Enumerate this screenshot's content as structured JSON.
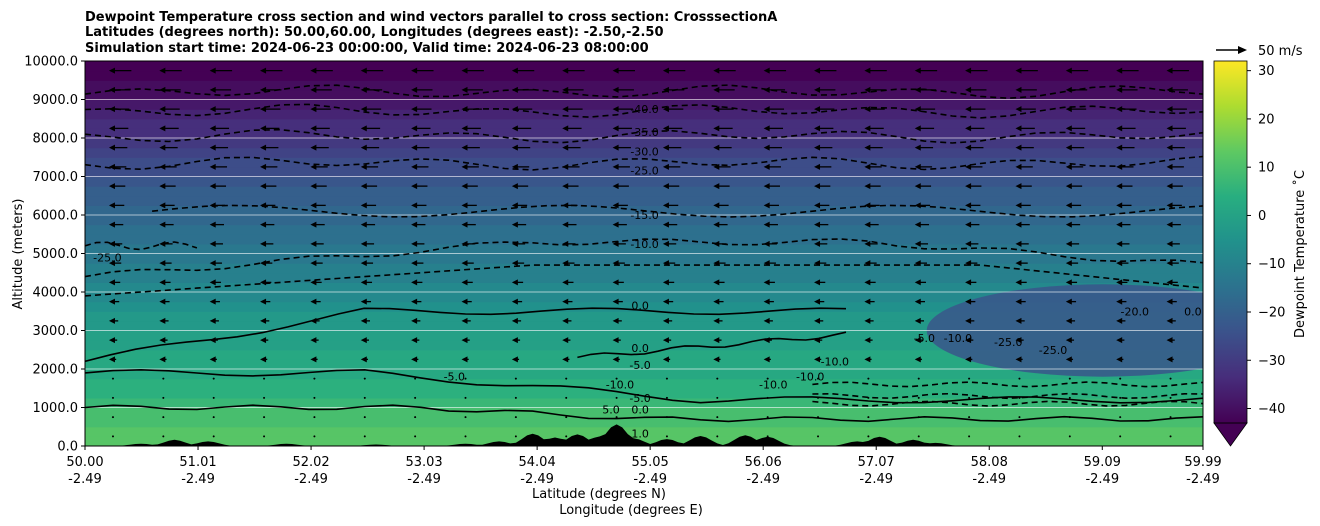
{
  "chart_data": {
    "type": "heatmap",
    "title_lines": [
      "Dewpoint Temperature cross section and wind vectors parallel to cross section: CrosssectionA",
      "Latitudes (degrees north): 50.00,60.00, Longitudes (degrees east): -2.50,-2.50",
      "Simulation start time: 2024-06-23 00:00:00, Valid time: 2024-06-23 08:00:00"
    ],
    "ylabel": "Altitude (meters)",
    "xlabel_lat": "Latitude (degrees N)",
    "xlabel_lon": "Longitude (degrees E)",
    "ylim": [
      0,
      10000
    ],
    "xlim": [
      50.0,
      59.99
    ],
    "y_ticks": [
      0,
      1000,
      2000,
      3000,
      4000,
      5000,
      6000,
      7000,
      8000,
      9000,
      10000
    ],
    "y_tick_labels": [
      "0.0",
      "1000.0",
      "2000.0",
      "3000.0",
      "4000.0",
      "5000.0",
      "6000.0",
      "7000.0",
      "8000.0",
      "9000.0",
      "10000.0"
    ],
    "x_ticks": [
      50.0,
      51.01,
      52.02,
      53.03,
      54.04,
      55.05,
      56.06,
      57.07,
      58.08,
      59.09,
      59.99
    ],
    "x_tick_lat_labels": [
      "50.00",
      "51.01",
      "52.02",
      "53.03",
      "54.04",
      "55.05",
      "56.06",
      "57.07",
      "58.08",
      "59.09",
      "59.99"
    ],
    "x_tick_lon_labels": [
      "-2.49",
      "-2.49",
      "-2.49",
      "-2.49",
      "-2.49",
      "-2.49",
      "-2.49",
      "-2.49",
      "-2.49",
      "-2.49",
      "-2.49"
    ],
    "colorbar": {
      "label": "Dewpoint Temperature ˚C",
      "range": [
        -43,
        32
      ],
      "ticks": [
        -40,
        -30,
        -20,
        -10,
        0,
        10,
        20,
        30
      ],
      "tick_labels": [
        "−40",
        "−30",
        "−20",
        "−10",
        "0",
        "10",
        "20",
        "30"
      ],
      "extend": "min"
    },
    "field_profile": [
      {
        "alt": 0,
        "dewpoint": 13
      },
      {
        "alt": 500,
        "dewpoint": 11
      },
      {
        "alt": 1000,
        "dewpoint": 8
      },
      {
        "alt": 1500,
        "dewpoint": 4
      },
      {
        "alt": 2000,
        "dewpoint": 2
      },
      {
        "alt": 2500,
        "dewpoint": 1
      },
      {
        "alt": 3000,
        "dewpoint": -2
      },
      {
        "alt": 3500,
        "dewpoint": -5
      },
      {
        "alt": 4000,
        "dewpoint": -8
      },
      {
        "alt": 4500,
        "dewpoint": -11
      },
      {
        "alt": 5000,
        "dewpoint": -13
      },
      {
        "alt": 5500,
        "dewpoint": -15
      },
      {
        "alt": 6000,
        "dewpoint": -18
      },
      {
        "alt": 6500,
        "dewpoint": -21
      },
      {
        "alt": 7000,
        "dewpoint": -24
      },
      {
        "alt": 7500,
        "dewpoint": -27
      },
      {
        "alt": 8000,
        "dewpoint": -31
      },
      {
        "alt": 8500,
        "dewpoint": -35
      },
      {
        "alt": 9000,
        "dewpoint": -39
      },
      {
        "alt": 9500,
        "dewpoint": -42
      },
      {
        "alt": 10000,
        "dewpoint": -44
      }
    ],
    "dry_region": {
      "lat_min": 57.2,
      "lat_max": 59.99,
      "alt_min": 1800,
      "alt_max": 4200,
      "dewpoint": -24
    },
    "contour_labels": [
      {
        "text": "-40.0",
        "lat": 55.0,
        "alt": 8750
      },
      {
        "text": "-35.0",
        "lat": 55.0,
        "alt": 8150
      },
      {
        "text": "-30.0",
        "lat": 55.0,
        "alt": 7650
      },
      {
        "text": "-25.0",
        "lat": 55.0,
        "alt": 7150
      },
      {
        "text": "-15.0",
        "lat": 55.0,
        "alt": 6000
      },
      {
        "text": "-10.0",
        "lat": 55.0,
        "alt": 5250
      },
      {
        "text": "0.0",
        "lat": 54.96,
        "alt": 3650
      },
      {
        "text": "0.0",
        "lat": 54.96,
        "alt": 2550
      },
      {
        "text": "-5.0",
        "lat": 54.96,
        "alt": 2100
      },
      {
        "text": "-10.0",
        "lat": 54.78,
        "alt": 1600
      },
      {
        "text": "-5.0",
        "lat": 54.96,
        "alt": 1250
      },
      {
        "text": "5.0",
        "lat": 54.7,
        "alt": 950
      },
      {
        "text": "0.0",
        "lat": 54.96,
        "alt": 950
      },
      {
        "text": "1.0",
        "lat": 54.96,
        "alt": 330
      },
      {
        "text": "-10.0",
        "lat": 56.15,
        "alt": 1600
      },
      {
        "text": "-10.0",
        "lat": 56.48,
        "alt": 1800
      },
      {
        "text": "-10.0",
        "lat": 56.7,
        "alt": 2200
      },
      {
        "text": "-5.0",
        "lat": 57.5,
        "alt": 2800
      },
      {
        "text": "-10.0",
        "lat": 57.8,
        "alt": 2800
      },
      {
        "text": "-25.0",
        "lat": 58.25,
        "alt": 2700
      },
      {
        "text": "-25.0",
        "lat": 58.65,
        "alt": 2500
      },
      {
        "text": "-20.0",
        "lat": 59.38,
        "alt": 3500
      },
      {
        "text": "0.0",
        "lat": 59.9,
        "alt": 3500
      },
      {
        "text": "-25.0",
        "lat": 50.2,
        "alt": 4900
      },
      {
        "text": "-5.0",
        "lat": 53.3,
        "alt": 1800
      }
    ],
    "wind_reference": {
      "label": "50 m/s",
      "speed": 50
    },
    "terrain_peaks": [
      {
        "lat": 50.5,
        "height": 60
      },
      {
        "lat": 50.8,
        "height": 160
      },
      {
        "lat": 51.1,
        "height": 120
      },
      {
        "lat": 51.8,
        "height": 60
      },
      {
        "lat": 52.6,
        "height": 40
      },
      {
        "lat": 53.4,
        "height": 60
      },
      {
        "lat": 53.7,
        "height": 120
      },
      {
        "lat": 54.0,
        "height": 320
      },
      {
        "lat": 54.2,
        "height": 220
      },
      {
        "lat": 54.4,
        "height": 300
      },
      {
        "lat": 54.6,
        "height": 250
      },
      {
        "lat": 54.75,
        "height": 560
      },
      {
        "lat": 54.9,
        "height": 200
      },
      {
        "lat": 55.2,
        "height": 180
      },
      {
        "lat": 55.5,
        "height": 260
      },
      {
        "lat": 55.9,
        "height": 280
      },
      {
        "lat": 56.1,
        "height": 240
      },
      {
        "lat": 56.9,
        "height": 120
      },
      {
        "lat": 57.1,
        "height": 240
      },
      {
        "lat": 57.4,
        "height": 160
      },
      {
        "lat": 57.6,
        "height": 80
      }
    ]
  }
}
